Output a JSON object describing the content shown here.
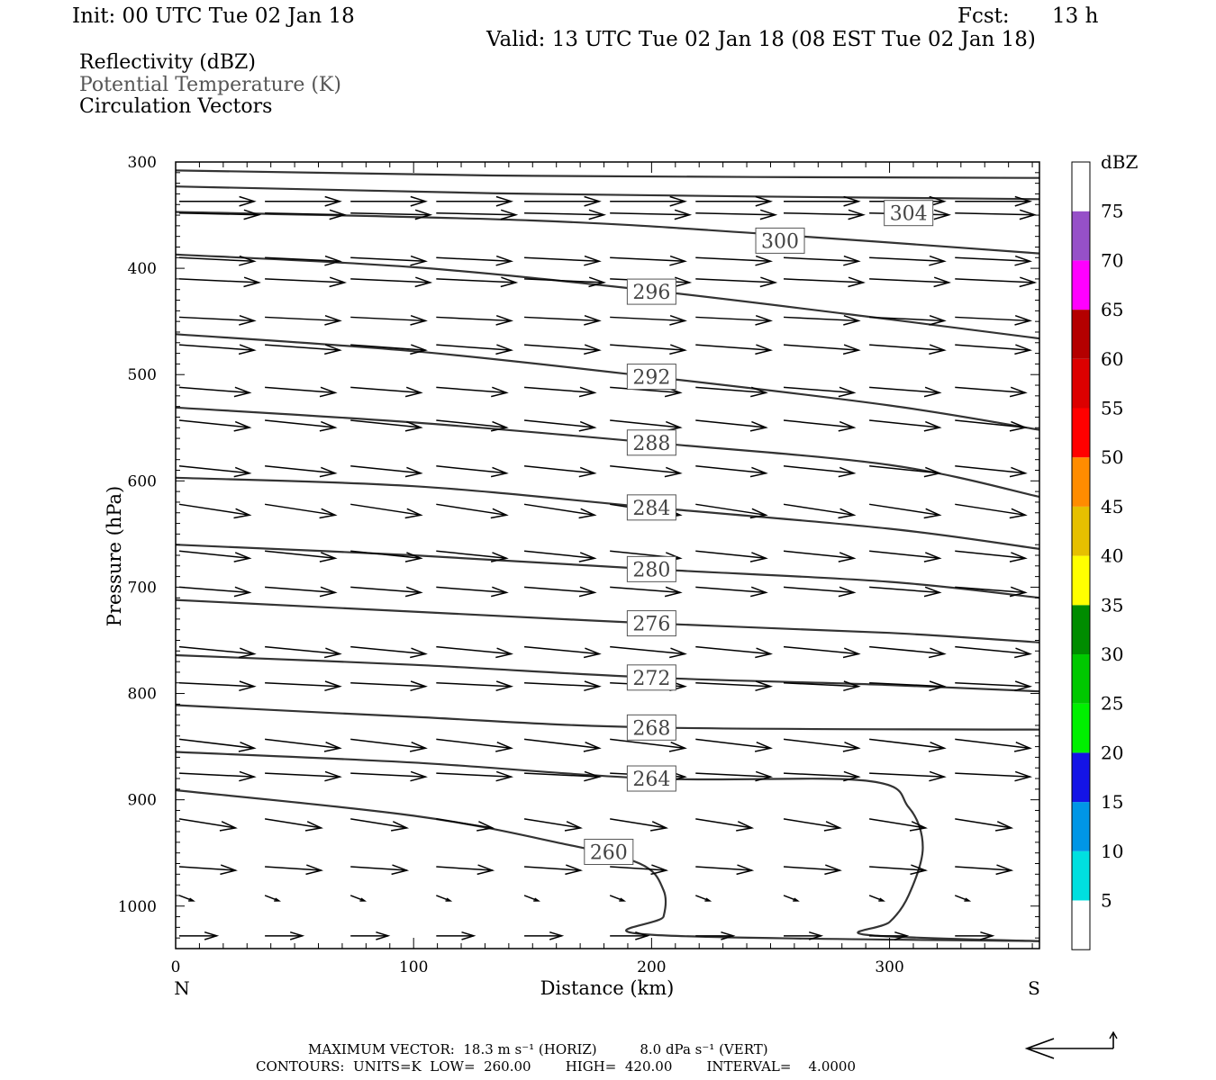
{
  "header": {
    "init": "Init: 00 UTC Tue 02 Jan 18",
    "fcst_label": "Fcst:",
    "fcst_value": "13 h",
    "valid": "Valid: 13 UTC Tue 02 Jan 18 (08 EST Tue 02 Jan 18)",
    "fields": [
      "Reflectivity (dBZ)",
      "Potential Temperature (K)",
      "Circulation Vectors"
    ]
  },
  "chart_data": {
    "type": "cross-section",
    "xlabel": "Distance (km)",
    "ylabel": "Pressure (hPa)",
    "xlim": [
      0,
      363
    ],
    "ylim": [
      1040,
      300
    ],
    "x_ticks": [
      0,
      100,
      200,
      300
    ],
    "y_ticks": [
      300,
      400,
      500,
      600,
      700,
      800,
      900,
      1000
    ],
    "end_labels": {
      "left": "N",
      "right": "S"
    },
    "colorbar": {
      "unit": "dBZ",
      "ticks": [
        5,
        10,
        15,
        20,
        25,
        30,
        35,
        40,
        45,
        50,
        55,
        60,
        65,
        70,
        75
      ],
      "colors": [
        "#ffffff",
        "#00e0e0",
        "#0096e6",
        "#1414e6",
        "#00f000",
        "#00c800",
        "#008c00",
        "#ffff00",
        "#e6c000",
        "#ff8c00",
        "#ff0000",
        "#dc0000",
        "#b40000",
        "#ff00ff",
        "#9650c8",
        "#ffffff"
      ]
    },
    "theta_contours": [
      {
        "label": "304",
        "points": [
          [
            0,
            308
          ],
          [
            150,
            313
          ],
          [
            363,
            315
          ]
        ]
      },
      {
        "label": "300",
        "points": [
          [
            0,
            323
          ],
          [
            150,
            330
          ],
          [
            363,
            335
          ]
        ]
      },
      {
        "label": "300",
        "label_pos": [
          254,
          374
        ],
        "points": [
          [
            0,
            347
          ],
          [
            150,
            355
          ],
          [
            250,
            368
          ],
          [
            363,
            386
          ]
        ]
      },
      {
        "label": "296",
        "label_pos": [
          200,
          422
        ],
        "points": [
          [
            0,
            387
          ],
          [
            100,
            399
          ],
          [
            200,
            421
          ],
          [
            300,
            448
          ],
          [
            363,
            466
          ]
        ]
      },
      {
        "label": "292",
        "label_pos": [
          200,
          502
        ],
        "points": [
          [
            0,
            462
          ],
          [
            100,
            478
          ],
          [
            200,
            502
          ],
          [
            300,
            529
          ],
          [
            363,
            552
          ]
        ]
      },
      {
        "label": "288",
        "label_pos": [
          200,
          564
        ],
        "points": [
          [
            0,
            531
          ],
          [
            100,
            545
          ],
          [
            200,
            564
          ],
          [
            300,
            585
          ],
          [
            363,
            615
          ]
        ]
      },
      {
        "label": "284",
        "label_pos": [
          200,
          625
        ],
        "points": [
          [
            0,
            597
          ],
          [
            100,
            605
          ],
          [
            200,
            625
          ],
          [
            300,
            645
          ],
          [
            363,
            664
          ]
        ]
      },
      {
        "label": "280",
        "label_pos": [
          200,
          683
        ],
        "points": [
          [
            0,
            660
          ],
          [
            100,
            670
          ],
          [
            200,
            683
          ],
          [
            300,
            695
          ],
          [
            363,
            710
          ]
        ]
      },
      {
        "label": "276",
        "label_pos": [
          200,
          734
        ],
        "points": [
          [
            0,
            712
          ],
          [
            100,
            723
          ],
          [
            200,
            734
          ],
          [
            300,
            743
          ],
          [
            363,
            752
          ]
        ]
      },
      {
        "label": "272",
        "label_pos": [
          200,
          785
        ],
        "points": [
          [
            0,
            764
          ],
          [
            100,
            773
          ],
          [
            200,
            785
          ],
          [
            300,
            792
          ],
          [
            363,
            798
          ]
        ]
      },
      {
        "label": "268",
        "label_pos": [
          200,
          832
        ],
        "points": [
          [
            0,
            811
          ],
          [
            100,
            822
          ],
          [
            200,
            832
          ],
          [
            363,
            834
          ]
        ]
      },
      {
        "label": "264",
        "label_pos": [
          200,
          880
        ],
        "points": [
          [
            0,
            855
          ],
          [
            100,
            865
          ],
          [
            200,
            880
          ],
          [
            290,
            882
          ],
          [
            308,
            907
          ],
          [
            314,
            945
          ],
          [
            308,
            990
          ],
          [
            300,
            1015
          ],
          [
            290,
            1027
          ],
          [
            363,
            1033
          ]
        ]
      },
      {
        "label": "260",
        "label_pos": [
          182,
          949
        ],
        "points": [
          [
            0,
            891
          ],
          [
            100,
            915
          ],
          [
            160,
            940
          ],
          [
            195,
            960
          ],
          [
            205,
            985
          ],
          [
            205,
            1010
          ],
          [
            200,
            1027
          ],
          [
            363,
            1033
          ]
        ]
      }
    ],
    "circulation_vectors": [
      {
        "p": 337,
        "u": 16,
        "w": 0
      },
      {
        "p": 348,
        "u": 17,
        "w": 0.5
      },
      {
        "p": 390,
        "u": 16,
        "w": 1
      },
      {
        "p": 410,
        "u": 17,
        "w": 1
      },
      {
        "p": 446,
        "u": 16,
        "w": 1
      },
      {
        "p": 472,
        "u": 16,
        "w": 1.5
      },
      {
        "p": 512,
        "u": 15,
        "w": 1.5
      },
      {
        "p": 543,
        "u": 15,
        "w": 2
      },
      {
        "p": 586,
        "u": 15,
        "w": 2
      },
      {
        "p": 622,
        "u": 15,
        "w": 3
      },
      {
        "p": 666,
        "u": 15,
        "w": 2
      },
      {
        "p": 700,
        "u": 15,
        "w": 1.5
      },
      {
        "p": 756,
        "u": 16,
        "w": 2
      },
      {
        "p": 790,
        "u": 16,
        "w": 1
      },
      {
        "p": 843,
        "u": 16,
        "w": 2.5
      },
      {
        "p": 875,
        "u": 16,
        "w": 1
      },
      {
        "p": 918,
        "u": 12,
        "w": 2.5
      },
      {
        "p": 963,
        "u": 12,
        "w": 1
      },
      {
        "p": 990,
        "u": 3,
        "w": 1.5
      },
      {
        "p": 1028,
        "u": 8,
        "w": 0
      }
    ],
    "footer": {
      "line1": "MAXIMUM VECTOR:  18.3 m s⁻¹ (HORIZ)          8.0 dPa s⁻¹ (VERT)",
      "line2": "CONTOURS:  UNITS=K  LOW=  260.00        HIGH=  420.00        INTERVAL=    4.0000"
    }
  }
}
